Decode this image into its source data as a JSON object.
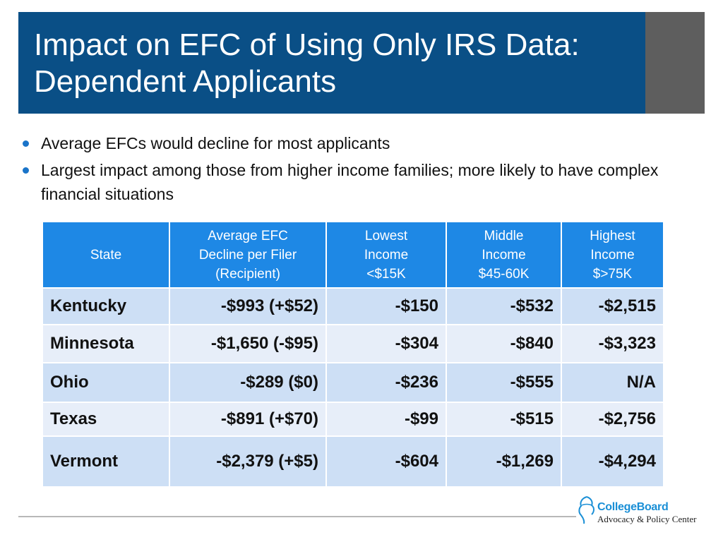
{
  "slide": {
    "title_line1": "Impact on EFC of Using Only IRS Data:",
    "title_line2": "Dependent Applicants",
    "bullets": [
      "Average EFCs would decline for most applicants",
      "Largest impact among those from higher income families; more likely to have complex financial situations"
    ],
    "colors": {
      "title_bg": "#0a4f86",
      "accent": "#5e5e5e",
      "header_bg": "#1e88e5",
      "row_a": "#cddff5",
      "row_b": "#e7eef9"
    }
  },
  "table": {
    "headers": [
      [
        "State"
      ],
      [
        "Average  EFC",
        "Decline per Filer",
        "(Recipient)"
      ],
      [
        "Lowest",
        "Income",
        "<$15K"
      ],
      [
        "Middle",
        "Income",
        "$45-60K"
      ],
      [
        "Highest",
        "Income",
        "$>75K"
      ]
    ],
    "rows": [
      [
        "Kentucky",
        "-$993 (+$52)",
        "-$150",
        "-$532",
        "-$2,515"
      ],
      [
        "Minnesota",
        "-$1,650 (-$95)",
        "-$304",
        "-$840",
        "-$3,323"
      ],
      [
        "Ohio",
        "-$289 ($0)",
        "-$236",
        "-$555",
        "N/A"
      ],
      [
        "Texas",
        "-$891 (+$70)",
        "-$99",
        "-$515",
        "-$2,756"
      ],
      [
        "Vermont",
        "-$2,379 (+$5)",
        "-$604",
        "-$1,269",
        "-$4,294"
      ]
    ]
  },
  "footer": {
    "logo_name": "CollegeBoard",
    "logo_sub": "Advocacy & Policy Center",
    "logo_icon": "acorn-icon"
  }
}
